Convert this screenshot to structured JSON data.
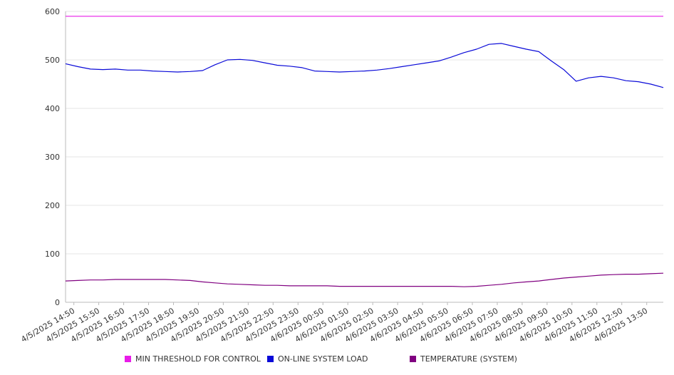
{
  "chart_data": {
    "type": "line",
    "ylim": [
      0,
      600
    ],
    "yticks": [
      0,
      100,
      200,
      300,
      400,
      500,
      600
    ],
    "grid": "horizontal",
    "legend_position": "bottom",
    "x_tick_labels": [
      "4/5/2025 14:50",
      "4/5/2025 15:50",
      "4/5/2025 16:50",
      "4/5/2025 17:50",
      "4/5/2025 18:50",
      "4/5/2025 19:50",
      "4/5/2025 20:50",
      "4/5/2025 21:50",
      "4/5/2025 22:50",
      "4/5/2025 23:50",
      "4/6/2025 00:50",
      "4/6/2025 01:50",
      "4/6/2025 02:50",
      "4/6/2025 03:50",
      "4/6/2025 04:50",
      "4/6/2025 05:50",
      "4/6/2025 06:50",
      "4/6/2025 07:50",
      "4/6/2025 08:50",
      "4/6/2025 09:50",
      "4/6/2025 10:50",
      "4/6/2025 11:50",
      "4/6/2025 12:50",
      "4/6/2025 13:50"
    ],
    "x": [
      "4/5/2025 14:30",
      "4/5/2025 15:00",
      "4/5/2025 15:30",
      "4/5/2025 16:00",
      "4/5/2025 16:30",
      "4/5/2025 17:00",
      "4/5/2025 17:30",
      "4/5/2025 18:00",
      "4/5/2025 18:30",
      "4/5/2025 19:00",
      "4/5/2025 19:30",
      "4/5/2025 20:00",
      "4/5/2025 20:30",
      "4/5/2025 21:00",
      "4/5/2025 21:30",
      "4/5/2025 22:00",
      "4/5/2025 22:30",
      "4/5/2025 23:00",
      "4/5/2025 23:30",
      "4/6/2025 00:00",
      "4/6/2025 00:30",
      "4/6/2025 01:00",
      "4/6/2025 01:30",
      "4/6/2025 02:00",
      "4/6/2025 02:30",
      "4/6/2025 03:00",
      "4/6/2025 03:30",
      "4/6/2025 04:00",
      "4/6/2025 04:30",
      "4/6/2025 05:00",
      "4/6/2025 05:30",
      "4/6/2025 06:00",
      "4/6/2025 06:30",
      "4/6/2025 07:00",
      "4/6/2025 07:30",
      "4/6/2025 08:00",
      "4/6/2025 08:30",
      "4/6/2025 09:00",
      "4/6/2025 09:30",
      "4/6/2025 10:00",
      "4/6/2025 10:30",
      "4/6/2025 11:00",
      "4/6/2025 11:30",
      "4/6/2025 12:00",
      "4/6/2025 12:30",
      "4/6/2025 13:00",
      "4/6/2025 13:30",
      "4/6/2025 14:00",
      "4/6/2025 14:30"
    ],
    "series": [
      {
        "name": "MIN THRESHOLD FOR CONTROL",
        "color": "#e81ce8",
        "values": [
          590,
          590,
          590,
          590,
          590,
          590,
          590,
          590,
          590,
          590,
          590,
          590,
          590,
          590,
          590,
          590,
          590,
          590,
          590,
          590,
          590,
          590,
          590,
          590,
          590,
          590,
          590,
          590,
          590,
          590,
          590,
          590,
          590,
          590,
          590,
          590,
          590,
          590,
          590,
          590,
          590,
          590,
          590,
          590,
          590,
          590,
          590,
          590,
          590
        ]
      },
      {
        "name": "ON-LINE SYSTEM LOAD",
        "color": "#0a0ad8",
        "values": [
          492,
          486,
          481,
          480,
          481,
          479,
          479,
          477,
          476,
          475,
          476,
          478,
          490,
          500,
          501,
          499,
          494,
          489,
          487,
          484,
          477,
          476,
          475,
          476,
          477,
          479,
          482,
          486,
          490,
          494,
          498,
          506,
          515,
          522,
          532,
          534,
          528,
          522,
          517,
          498,
          480,
          456,
          463,
          466,
          463,
          457,
          455,
          450,
          443
        ]
      },
      {
        "name": "TEMPERATURE (SYSTEM)",
        "color": "#800080",
        "values": [
          44,
          45,
          46,
          46,
          47,
          47,
          47,
          47,
          47,
          46,
          45,
          42,
          40,
          38,
          37,
          36,
          35,
          35,
          34,
          34,
          34,
          34,
          33,
          33,
          33,
          33,
          33,
          33,
          33,
          33,
          33,
          33,
          32,
          33,
          35,
          37,
          40,
          42,
          44,
          47,
          50,
          52,
          54,
          56,
          57,
          58,
          58,
          59,
          60
        ]
      }
    ]
  }
}
